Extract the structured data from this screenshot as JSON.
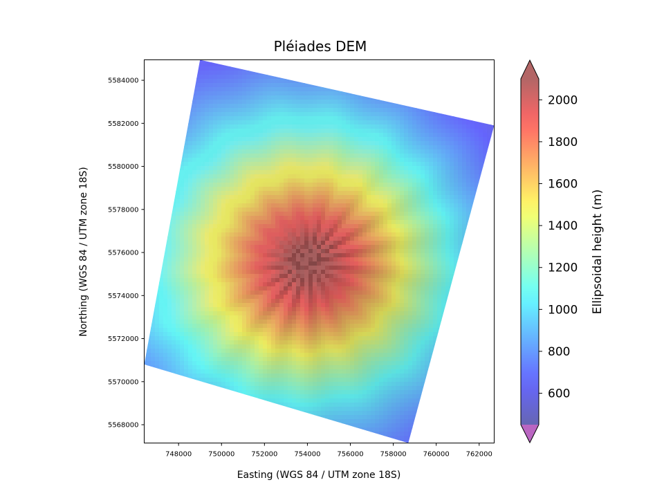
{
  "chart_data": {
    "type": "heatmap",
    "title": "Pléiades DEM",
    "xlabel": "Easting (WGS 84 / UTM zone 18S)",
    "ylabel": "Northing (WGS 84 / UTM zone 18S)",
    "xlim": [
      746400,
      762700
    ],
    "ylim": [
      5567150,
      5584950
    ],
    "x_ticks": [
      748000,
      750000,
      752000,
      754000,
      756000,
      758000,
      760000,
      762000
    ],
    "y_ticks": [
      5568000,
      5570000,
      5572000,
      5574000,
      5576000,
      5578000,
      5580000,
      5582000,
      5584000
    ],
    "x_tick_labels": [
      "748000",
      "750000",
      "752000",
      "754000",
      "756000",
      "758000",
      "760000",
      "762000"
    ],
    "y_tick_labels": [
      "5568000",
      "5570000",
      "5572000",
      "5574000",
      "5576000",
      "5578000",
      "5580000",
      "5582000",
      "5584000"
    ],
    "footprint_corners": [
      [
        749000,
        5584950
      ],
      [
        762700,
        5581900
      ],
      [
        758700,
        5567150
      ],
      [
        746400,
        5570800
      ]
    ],
    "summit": {
      "x": 754000,
      "y": 5575600
    },
    "colorbar": {
      "label": "Ellipsoidal height (m)",
      "colormap": "jet",
      "alpha": 0.6,
      "vmin": 450,
      "vmax": 2100,
      "extend": "both",
      "ticks": [
        600,
        800,
        1000,
        1200,
        1400,
        1600,
        1800,
        2000
      ],
      "tick_labels": [
        "600",
        "800",
        "1000",
        "1200",
        "1400",
        "1600",
        "1800",
        "2000"
      ]
    },
    "hillshade": true,
    "grid": false
  }
}
